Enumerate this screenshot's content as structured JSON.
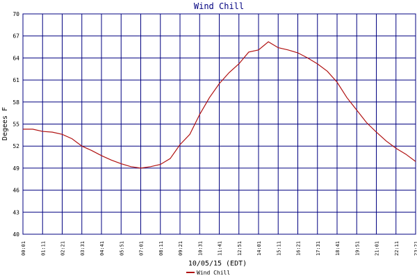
{
  "chart_data": {
    "type": "line",
    "title": "Wind Chill",
    "y_label": "Degees F",
    "x_label": "10/05/15 (EDT)",
    "x": [
      "00:01",
      "00:36",
      "01:11",
      "01:46",
      "02:21",
      "02:56",
      "03:31",
      "04:06",
      "04:41",
      "05:16",
      "05:51",
      "06:26",
      "07:01",
      "07:36",
      "08:11",
      "08:46",
      "09:21",
      "09:56",
      "10:31",
      "11:06",
      "11:41",
      "12:16",
      "12:51",
      "13:26",
      "14:01",
      "14:36",
      "15:11",
      "15:46",
      "16:21",
      "16:56",
      "17:31",
      "18:06",
      "18:41",
      "19:16",
      "19:51",
      "20:26",
      "21:01",
      "21:36",
      "22:11",
      "22:46",
      "23:21"
    ],
    "series": [
      {
        "name": "Wind Chill",
        "color": "#b01010",
        "values": [
          54.3,
          54.3,
          54.0,
          53.9,
          53.6,
          53.0,
          52.0,
          51.4,
          50.7,
          50.1,
          49.6,
          49.2,
          49.0,
          49.2,
          49.5,
          50.3,
          52.2,
          53.6,
          56.3,
          58.6,
          60.5,
          62.0,
          63.2,
          64.8,
          65.1,
          66.2,
          65.4,
          65.1,
          64.7,
          64.0,
          63.2,
          62.2,
          60.7,
          58.6,
          56.9,
          55.2,
          53.9,
          52.7,
          51.7,
          50.9,
          49.9
        ]
      }
    ],
    "xlim": [
      "00:01",
      "23:21"
    ],
    "xticks": [
      "00:01",
      "01:11",
      "02:21",
      "03:31",
      "04:41",
      "05:51",
      "07:01",
      "08:11",
      "09:21",
      "10:31",
      "11:41",
      "12:51",
      "14:01",
      "15:11",
      "16:21",
      "17:31",
      "18:41",
      "19:51",
      "21:01",
      "22:11",
      "23:21"
    ],
    "ylim": [
      40,
      70
    ],
    "yticks": [
      40,
      43,
      46,
      49,
      52,
      55,
      58,
      61,
      64,
      67,
      70
    ],
    "grid": true,
    "grid_color": "#000080",
    "legend": "bottom"
  }
}
